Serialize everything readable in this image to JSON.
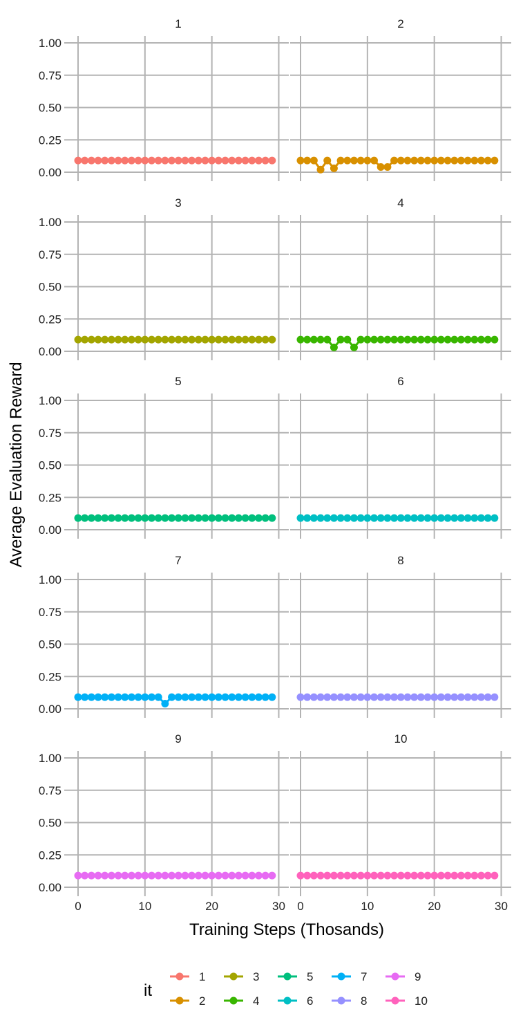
{
  "chart_data": {
    "type": "line",
    "facet_by": "it",
    "xlabel": "Training Steps (Thosands)",
    "ylabel": "Average Evaluation Reward",
    "xlim": [
      0,
      30
    ],
    "ylim": [
      0,
      1
    ],
    "x_ticks": [
      "0",
      "10",
      "20",
      "30"
    ],
    "y_ticks": [
      "0.00",
      "0.25",
      "0.50",
      "0.75",
      "1.00"
    ],
    "grid": true,
    "legend_title": "it",
    "legend_position": "bottom",
    "x": [
      0,
      1,
      2,
      3,
      4,
      5,
      6,
      7,
      8,
      9,
      10,
      11,
      12,
      13,
      14,
      15,
      16,
      17,
      18,
      19,
      20,
      21,
      22,
      23,
      24,
      25,
      26,
      27,
      28,
      29
    ],
    "series": [
      {
        "name": "1",
        "color": "#F8766D",
        "values": [
          0.09,
          0.09,
          0.09,
          0.09,
          0.09,
          0.09,
          0.09,
          0.09,
          0.09,
          0.09,
          0.09,
          0.09,
          0.09,
          0.09,
          0.09,
          0.09,
          0.09,
          0.09,
          0.09,
          0.09,
          0.09,
          0.09,
          0.09,
          0.09,
          0.09,
          0.09,
          0.09,
          0.09,
          0.09,
          0.09
        ]
      },
      {
        "name": "2",
        "color": "#D89000",
        "values": [
          0.09,
          0.09,
          0.09,
          0.02,
          0.09,
          0.03,
          0.09,
          0.09,
          0.09,
          0.09,
          0.09,
          0.09,
          0.04,
          0.04,
          0.09,
          0.09,
          0.09,
          0.09,
          0.09,
          0.09,
          0.09,
          0.09,
          0.09,
          0.09,
          0.09,
          0.09,
          0.09,
          0.09,
          0.09,
          0.09
        ]
      },
      {
        "name": "3",
        "color": "#A3A500",
        "values": [
          0.09,
          0.09,
          0.09,
          0.09,
          0.09,
          0.09,
          0.09,
          0.09,
          0.09,
          0.09,
          0.09,
          0.09,
          0.09,
          0.09,
          0.09,
          0.09,
          0.09,
          0.09,
          0.09,
          0.09,
          0.09,
          0.09,
          0.09,
          0.09,
          0.09,
          0.09,
          0.09,
          0.09,
          0.09,
          0.09
        ]
      },
      {
        "name": "4",
        "color": "#39B600",
        "values": [
          0.09,
          0.09,
          0.09,
          0.09,
          0.09,
          0.03,
          0.09,
          0.09,
          0.03,
          0.09,
          0.09,
          0.09,
          0.09,
          0.09,
          0.09,
          0.09,
          0.09,
          0.09,
          0.09,
          0.09,
          0.09,
          0.09,
          0.09,
          0.09,
          0.09,
          0.09,
          0.09,
          0.09,
          0.09,
          0.09
        ]
      },
      {
        "name": "5",
        "color": "#00BF7D",
        "values": [
          0.09,
          0.09,
          0.09,
          0.09,
          0.09,
          0.09,
          0.09,
          0.09,
          0.09,
          0.09,
          0.09,
          0.09,
          0.09,
          0.09,
          0.09,
          0.09,
          0.09,
          0.09,
          0.09,
          0.09,
          0.09,
          0.09,
          0.09,
          0.09,
          0.09,
          0.09,
          0.09,
          0.09,
          0.09,
          0.09
        ]
      },
      {
        "name": "6",
        "color": "#00BFC4",
        "values": [
          0.09,
          0.09,
          0.09,
          0.09,
          0.09,
          0.09,
          0.09,
          0.09,
          0.09,
          0.09,
          0.09,
          0.09,
          0.09,
          0.09,
          0.09,
          0.09,
          0.09,
          0.09,
          0.09,
          0.09,
          0.09,
          0.09,
          0.09,
          0.09,
          0.09,
          0.09,
          0.09,
          0.09,
          0.09,
          0.09
        ]
      },
      {
        "name": "7",
        "color": "#00B0F6",
        "values": [
          0.09,
          0.09,
          0.09,
          0.09,
          0.09,
          0.09,
          0.09,
          0.09,
          0.09,
          0.09,
          0.09,
          0.09,
          0.09,
          0.04,
          0.09,
          0.09,
          0.09,
          0.09,
          0.09,
          0.09,
          0.09,
          0.09,
          0.09,
          0.09,
          0.09,
          0.09,
          0.09,
          0.09,
          0.09,
          0.09
        ]
      },
      {
        "name": "8",
        "color": "#9590FF",
        "values": [
          0.09,
          0.09,
          0.09,
          0.09,
          0.09,
          0.09,
          0.09,
          0.09,
          0.09,
          0.09,
          0.09,
          0.09,
          0.09,
          0.09,
          0.09,
          0.09,
          0.09,
          0.09,
          0.09,
          0.09,
          0.09,
          0.09,
          0.09,
          0.09,
          0.09,
          0.09,
          0.09,
          0.09,
          0.09,
          0.09
        ]
      },
      {
        "name": "9",
        "color": "#E76BF3",
        "values": [
          0.09,
          0.09,
          0.09,
          0.09,
          0.09,
          0.09,
          0.09,
          0.09,
          0.09,
          0.09,
          0.09,
          0.09,
          0.09,
          0.09,
          0.09,
          0.09,
          0.09,
          0.09,
          0.09,
          0.09,
          0.09,
          0.09,
          0.09,
          0.09,
          0.09,
          0.09,
          0.09,
          0.09,
          0.09,
          0.09
        ]
      },
      {
        "name": "10",
        "color": "#FF62BC",
        "values": [
          0.09,
          0.09,
          0.09,
          0.09,
          0.09,
          0.09,
          0.09,
          0.09,
          0.09,
          0.09,
          0.09,
          0.09,
          0.09,
          0.09,
          0.09,
          0.09,
          0.09,
          0.09,
          0.09,
          0.09,
          0.09,
          0.09,
          0.09,
          0.09,
          0.09,
          0.09,
          0.09,
          0.09,
          0.09,
          0.09
        ]
      }
    ]
  }
}
